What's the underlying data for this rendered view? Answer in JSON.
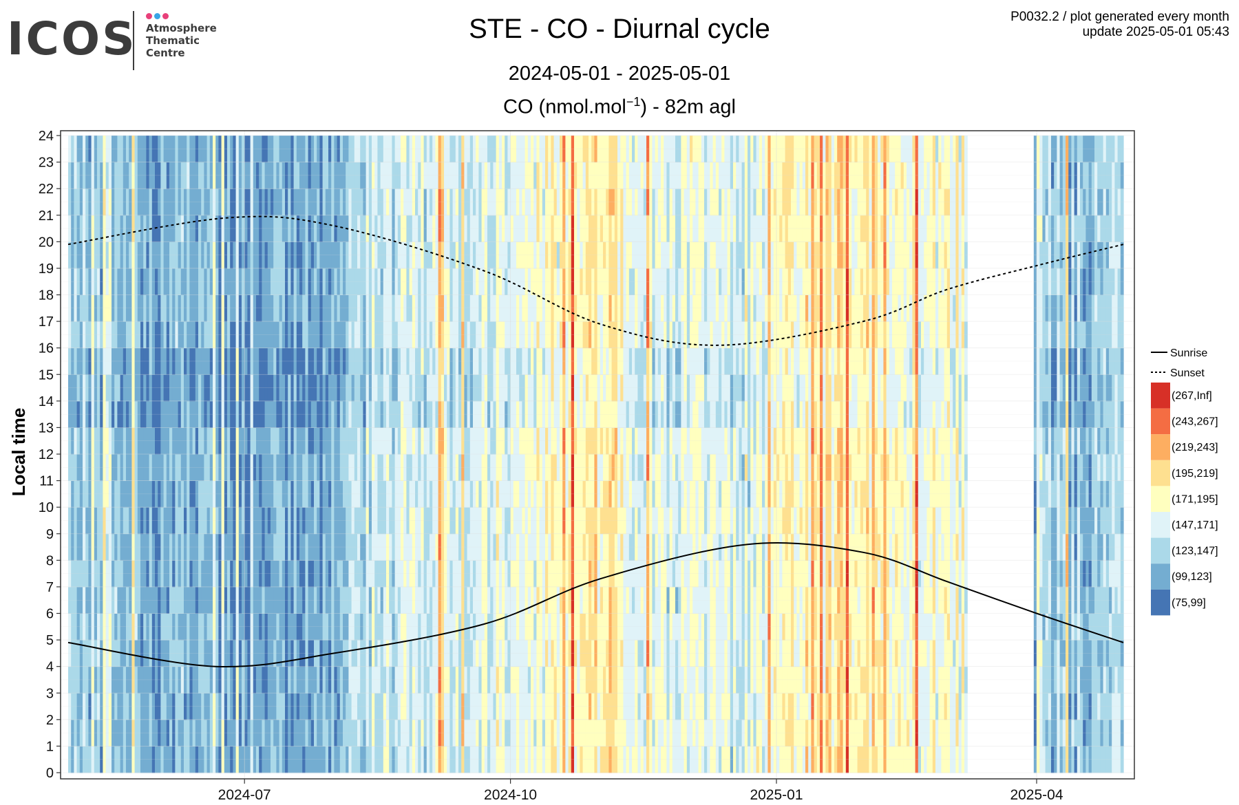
{
  "logo": {
    "text": "ICOS",
    "lines": [
      "Atmosphere",
      "Thematic",
      "Centre"
    ],
    "dot_colors": [
      "#e8407a",
      "#3aa5e6",
      "#e8407a"
    ]
  },
  "header": {
    "title": "STE - CO - Diurnal cycle",
    "period": "2024-05-01 - 2025-05-01",
    "subtitle_prefix": "CO (nmol.mol",
    "subtitle_exp": "−1",
    "subtitle_suffix": ") - 82m agl",
    "meta_line1": "P0032.2 / plot generated every month",
    "meta_line2": "update  2025-05-01 05:43"
  },
  "chart_data": {
    "type": "heatmap",
    "title": "STE - CO - Diurnal cycle",
    "ylabel": "Local time",
    "xlabel": "",
    "xlim": [
      "2024-05-01",
      "2025-05-01"
    ],
    "ylim": [
      0,
      24
    ],
    "y_ticks": [
      0,
      1,
      2,
      3,
      4,
      5,
      6,
      7,
      8,
      9,
      10,
      11,
      12,
      13,
      14,
      15,
      16,
      17,
      18,
      19,
      20,
      21,
      22,
      23,
      24
    ],
    "x_ticks": [
      {
        "date": "2024-07-01",
        "label": "2024-07"
      },
      {
        "date": "2024-10-01",
        "label": "2024-10"
      },
      {
        "date": "2025-01-01",
        "label": "2025-01"
      },
      {
        "date": "2025-04-01",
        "label": "2025-04"
      }
    ],
    "grid": true,
    "legend_position": "right",
    "missing_periods": [
      [
        "2025-03-08",
        "2025-03-31"
      ]
    ],
    "lines": [
      {
        "name": "Sunrise",
        "style": "solid",
        "points": [
          [
            "2024-05-01",
            4.9
          ],
          [
            "2024-06-21",
            4.0
          ],
          [
            "2024-08-01",
            4.5
          ],
          [
            "2024-09-22",
            5.6
          ],
          [
            "2024-11-01",
            7.3
          ],
          [
            "2024-12-22",
            8.6
          ],
          [
            "2025-01-31",
            8.3
          ],
          [
            "2025-03-01",
            7.2
          ],
          [
            "2025-04-01",
            6.0
          ],
          [
            "2025-05-01",
            4.9
          ]
        ]
      },
      {
        "name": "Sunset",
        "style": "dotted",
        "points": [
          [
            "2024-05-01",
            19.9
          ],
          [
            "2024-06-25",
            20.9
          ],
          [
            "2024-08-01",
            20.6
          ],
          [
            "2024-09-22",
            18.9
          ],
          [
            "2024-11-01",
            16.9
          ],
          [
            "2024-12-12",
            16.1
          ],
          [
            "2025-01-31",
            17.0
          ],
          [
            "2025-03-01",
            18.2
          ],
          [
            "2025-04-01",
            19.1
          ],
          [
            "2025-05-01",
            19.9
          ]
        ]
      }
    ],
    "bins": [
      {
        "label": "(267,Inf]",
        "color": "#d73027"
      },
      {
        "label": "(243,267]",
        "color": "#f46d43"
      },
      {
        "label": "(219,243]",
        "color": "#fdae61"
      },
      {
        "label": "(195,219]",
        "color": "#fee090"
      },
      {
        "label": "(171,195]",
        "color": "#ffffbf"
      },
      {
        "label": "(147,171]",
        "color": "#e0f3f8"
      },
      {
        "label": "(123,147]",
        "color": "#abd9e9"
      },
      {
        "label": "(99,123]",
        "color": "#74add1"
      },
      {
        "label": "(75,99]",
        "color": "#4575b4"
      }
    ]
  }
}
